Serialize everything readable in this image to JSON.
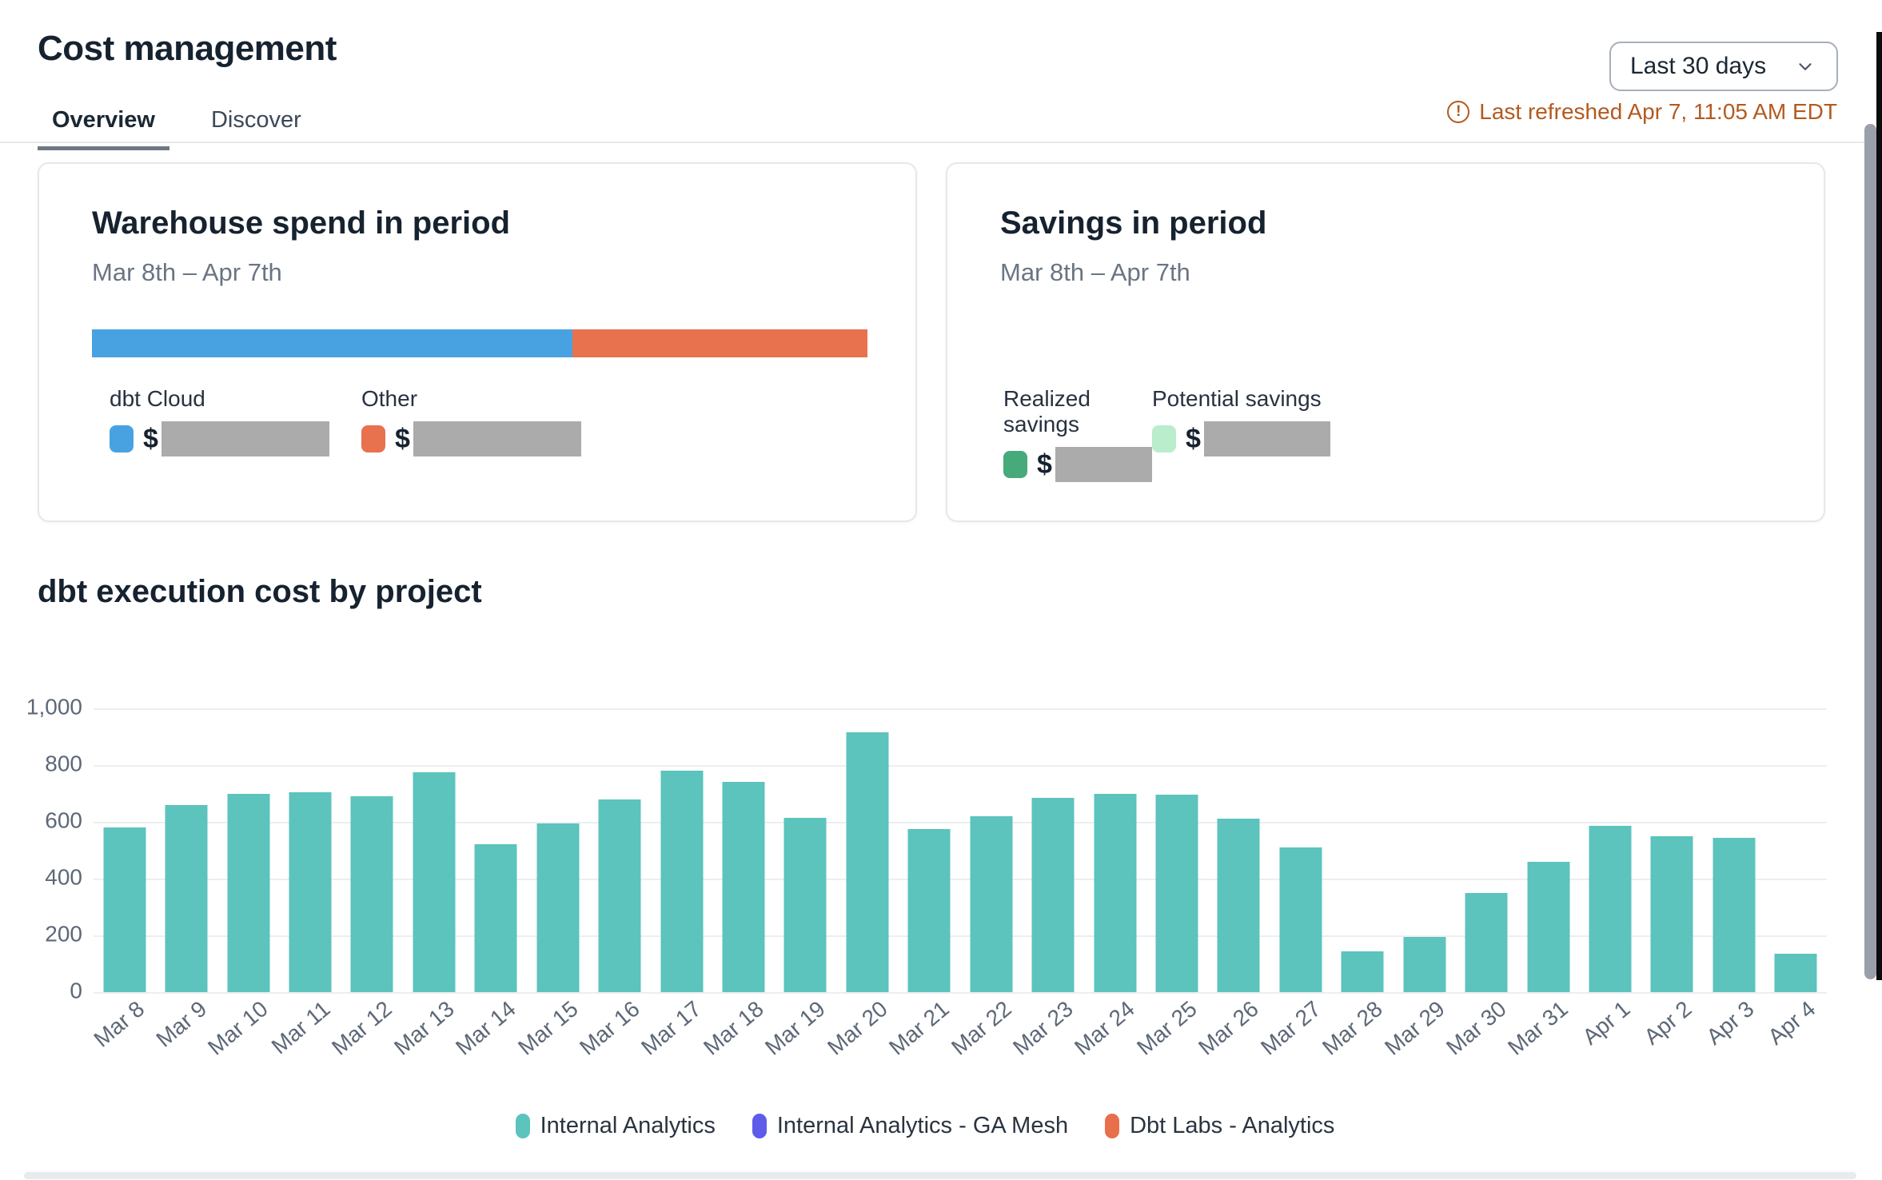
{
  "header": {
    "title": "Cost management",
    "tabs": [
      {
        "label": "Overview"
      },
      {
        "label": "Discover"
      }
    ],
    "active_tab": "Overview",
    "range_selector": {
      "value": "Last 30 days"
    },
    "refresh_notice": {
      "text": "Last refreshed Apr 7, 11:05 AM EDT",
      "color": "#b35a1f"
    }
  },
  "warehouse_card": {
    "title": "Warehouse spend in period",
    "subtitle": "Mar 8th – Apr 7th",
    "currency_symbol": "$",
    "redaction_color": "#ababab",
    "segments": [
      {
        "label": "dbt Cloud",
        "color": "#48a2e2",
        "fraction": 0.62,
        "value_redacted": true
      },
      {
        "label": "Other",
        "color": "#e8714e",
        "fraction": 0.38,
        "value_redacted": true
      }
    ]
  },
  "savings_card": {
    "title": "Savings in period",
    "subtitle": "Mar 8th – Apr 7th",
    "currency_symbol": "$",
    "items": [
      {
        "label": "Realized savings",
        "color": "#47aa7a",
        "value_redacted": true
      },
      {
        "label": "Potential savings",
        "color": "#b9edcc",
        "value_redacted": true
      }
    ]
  },
  "chart_data": {
    "type": "bar",
    "title": "dbt execution cost by project",
    "stacked": true,
    "grid": true,
    "legend_position": "bottom",
    "ylim": [
      0,
      1000
    ],
    "yticks": [
      0,
      200,
      400,
      600,
      800,
      1000
    ],
    "categories": [
      "Mar 8",
      "Mar 9",
      "Mar 10",
      "Mar 11",
      "Mar 12",
      "Mar 13",
      "Mar 14",
      "Mar 15",
      "Mar 16",
      "Mar 17",
      "Mar 18",
      "Mar 19",
      "Mar 20",
      "Mar 21",
      "Mar 22",
      "Mar 23",
      "Mar 24",
      "Mar 25",
      "Mar 26",
      "Mar 27",
      "Mar 28",
      "Mar 29",
      "Mar 30",
      "Mar 31",
      "Apr 1",
      "Apr 2",
      "Apr 3",
      "Apr 4"
    ],
    "series": [
      {
        "name": "Internal Analytics",
        "color": "#5cc3bd",
        "values": [
          580,
          660,
          700,
          705,
          690,
          775,
          520,
          595,
          680,
          780,
          740,
          615,
          915,
          575,
          620,
          685,
          700,
          695,
          610,
          510,
          145,
          195,
          350,
          460,
          585,
          550,
          545,
          135
        ]
      },
      {
        "name": "Internal Analytics - GA Mesh",
        "color": "#5e5ce8",
        "values": [
          0,
          0,
          0,
          0,
          0,
          0,
          0,
          0,
          0,
          0,
          0,
          0,
          0,
          0,
          0,
          0,
          0,
          0,
          0,
          0,
          0,
          0,
          0,
          0,
          0,
          0,
          0,
          0
        ]
      },
      {
        "name": "Dbt Labs - Analytics",
        "color": "#e86f4b",
        "values": [
          0,
          0,
          0,
          0,
          0,
          0,
          0,
          0,
          0,
          0,
          0,
          0,
          0,
          0,
          0,
          0,
          0,
          0,
          0,
          0,
          0,
          0,
          0,
          0,
          0,
          0,
          0,
          0
        ]
      }
    ]
  }
}
